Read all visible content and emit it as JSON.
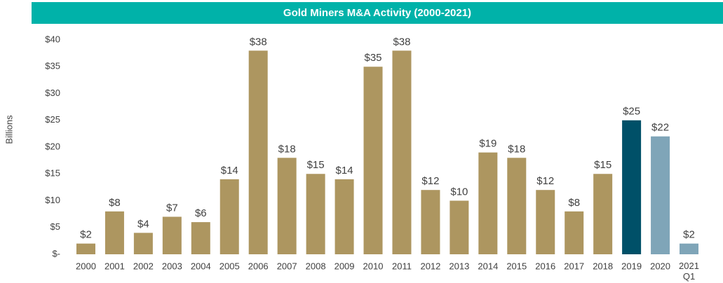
{
  "chart_data": {
    "type": "bar",
    "title": "Gold Miners M&A Activity (2000-2021)",
    "ylabel": "Billions",
    "categories": [
      "2000",
      "2001",
      "2002",
      "2003",
      "2004",
      "2005",
      "2006",
      "2007",
      "2008",
      "2009",
      "2010",
      "2011",
      "2012",
      "2013",
      "2014",
      "2015",
      "2016",
      "2017",
      "2018",
      "2019",
      "2020",
      "2021 Q1"
    ],
    "values": [
      2,
      8,
      4,
      7,
      6,
      14,
      38,
      18,
      15,
      14,
      35,
      38,
      12,
      10,
      19,
      18,
      12,
      8,
      15,
      25,
      22,
      2
    ],
    "value_labels": [
      "$2",
      "$8",
      "$4",
      "$7",
      "$6",
      "$14",
      "$38",
      "$18",
      "$15",
      "$14",
      "$35",
      "$38",
      "$12",
      "$10",
      "$19",
      "$18",
      "$12",
      "$8",
      "$15",
      "$25",
      "$22",
      "$2"
    ],
    "colors": [
      "#ad9660",
      "#ad9660",
      "#ad9660",
      "#ad9660",
      "#ad9660",
      "#ad9660",
      "#ad9660",
      "#ad9660",
      "#ad9660",
      "#ad9660",
      "#ad9660",
      "#ad9660",
      "#ad9660",
      "#ad9660",
      "#ad9660",
      "#ad9660",
      "#ad9660",
      "#ad9660",
      "#ad9660",
      "#005068",
      "#7fa5b8",
      "#7fa5b8"
    ],
    "ylim": [
      0,
      40
    ],
    "yticks": [
      {
        "value": 0,
        "label": "$-"
      },
      {
        "value": 5,
        "label": "$5"
      },
      {
        "value": 10,
        "label": "$10"
      },
      {
        "value": 15,
        "label": "$15"
      },
      {
        "value": 20,
        "label": "$20"
      },
      {
        "value": 25,
        "label": "$25"
      },
      {
        "value": 30,
        "label": "$30"
      },
      {
        "value": 35,
        "label": "$35"
      },
      {
        "value": 40,
        "label": "$40"
      }
    ],
    "grid": false
  }
}
